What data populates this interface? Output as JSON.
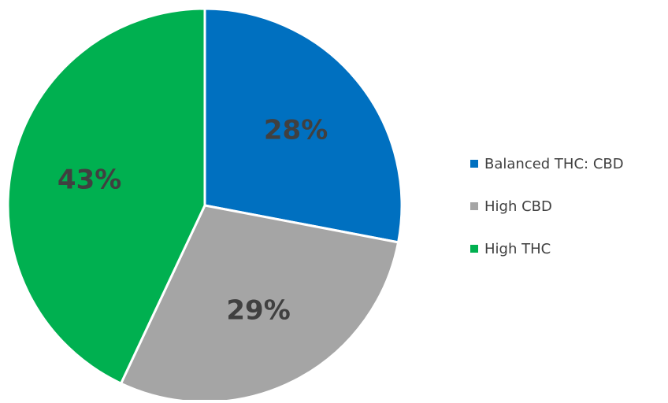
{
  "chart_data": {
    "type": "pie",
    "categories": [
      "Balanced THC: CBD",
      "High CBD",
      "High THC"
    ],
    "values": [
      28,
      29,
      43
    ],
    "data_labels": [
      "28%",
      "29%",
      "43%"
    ],
    "colors": [
      "#0070C0",
      "#A5A5A5",
      "#00B050"
    ],
    "start_angle_deg": 0,
    "direction": "clockwise",
    "legend_position": "right"
  }
}
